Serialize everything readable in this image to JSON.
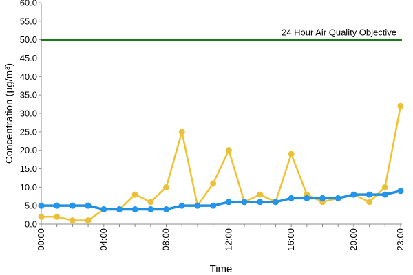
{
  "chart_data": {
    "type": "line",
    "xlabel": "Time",
    "ylabel": "Concentration (µg/m³)",
    "ylim": [
      0,
      60
    ],
    "y_ticks": [
      "0.0",
      "5.0",
      "10.0",
      "15.0",
      "20.0",
      "25.0",
      "30.0",
      "35.0",
      "40.0",
      "45.0",
      "50.0",
      "55.0",
      "60.0"
    ],
    "x": [
      0,
      1,
      2,
      3,
      4,
      5,
      6,
      7,
      8,
      9,
      10,
      11,
      12,
      13,
      14,
      15,
      16,
      17,
      18,
      19,
      20,
      21,
      22,
      23
    ],
    "x_ticks": [
      {
        "hour": 0,
        "label": "00:00"
      },
      {
        "hour": 4,
        "label": "04:00"
      },
      {
        "hour": 8,
        "label": "08:00"
      },
      {
        "hour": 12,
        "label": "12:00"
      },
      {
        "hour": 16,
        "label": "16:00"
      },
      {
        "hour": 20,
        "label": "20:00"
      },
      {
        "hour": 23,
        "label": "23:00"
      }
    ],
    "grid": "none",
    "legend": "none",
    "series": [
      {
        "color": "#f2c12e",
        "marker_fill": "#e8c040",
        "values": [
          2,
          2,
          1,
          1,
          4,
          4,
          8,
          6,
          10,
          25,
          5,
          11,
          20,
          6,
          8,
          6,
          19,
          8,
          6,
          7,
          8,
          6,
          10,
          32
        ]
      },
      {
        "color": "#1f8fe0",
        "marker_fill": "#2196f3",
        "values": [
          5,
          5,
          5,
          5,
          4,
          4,
          4,
          4,
          4,
          5,
          5,
          5,
          6,
          6,
          6,
          6,
          7,
          7,
          7,
          7,
          8,
          8,
          8,
          9
        ]
      }
    ],
    "reference_line": {
      "value": 50,
      "label": "24 Hour Air Quality Objective",
      "color": "#1a7a1a"
    }
  }
}
